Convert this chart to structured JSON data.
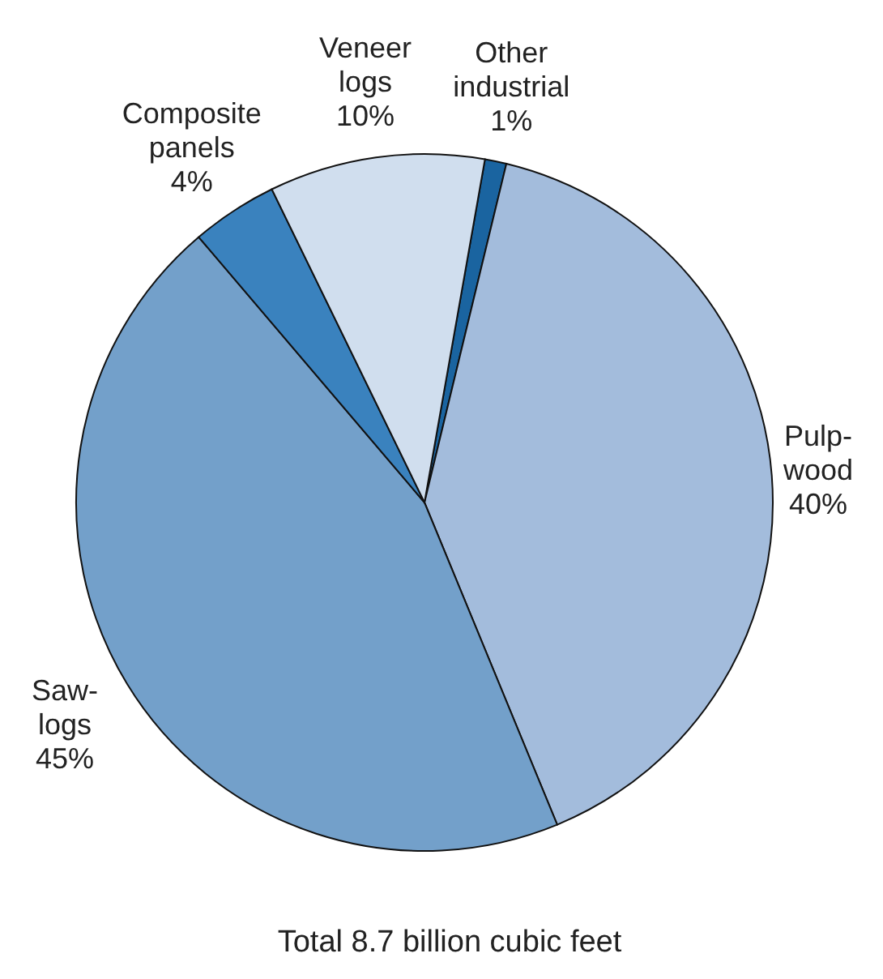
{
  "chart_data": {
    "type": "pie",
    "title": "Total 8.7 billion cubic feet",
    "categories": [
      "Other industrial",
      "Pulp-wood",
      "Saw-logs",
      "Composite panels",
      "Veneer logs"
    ],
    "values": [
      1,
      40,
      45,
      4,
      10
    ],
    "value_labels": [
      "1%",
      "40%",
      "45%",
      "4%",
      "10%"
    ],
    "colors": [
      "#1a64a0",
      "#a3bcdc",
      "#73a0ca",
      "#3a82be",
      "#d0deee"
    ],
    "legend": false
  }
}
